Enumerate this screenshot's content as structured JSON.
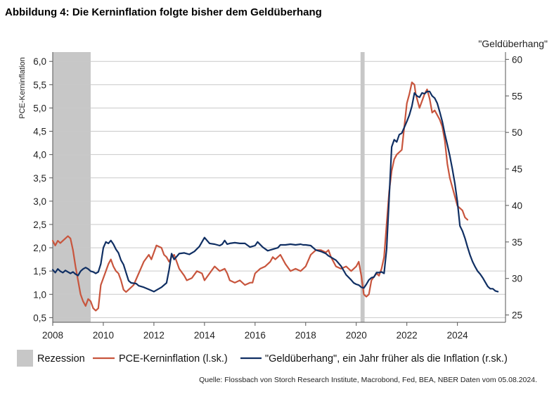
{
  "chart_data": {
    "type": "line",
    "title": "Abbildung 4: Die Kerninflation folgte bisher dem Geldüberhang",
    "ylabel_left": "PCE-Kerninflation",
    "ylabel_right": "\"Geldüberhang\"",
    "xlim": [
      2008,
      2025.9
    ],
    "ylim_left": [
      0.4,
      6.2
    ],
    "ylim_right": [
      24.0,
      61.0
    ],
    "x_ticks": [
      "2008",
      "2010",
      "2012",
      "2014",
      "2016",
      "2018",
      "2020",
      "2022",
      "2024"
    ],
    "y_left_ticks": [
      "0,5",
      "1,0",
      "1,5",
      "2,0",
      "2,5",
      "3,0",
      "3,5",
      "4,0",
      "4,5",
      "5,0",
      "5,5",
      "6,0"
    ],
    "y_right_ticks": [
      "25",
      "30",
      "35",
      "40",
      "45",
      "50",
      "55",
      "60"
    ],
    "grid": true,
    "legend_position": "bottom",
    "recessions": [
      {
        "start": 2008.0,
        "end": 2009.5
      },
      {
        "start": 2020.17,
        "end": 2020.33
      }
    ],
    "series": [
      {
        "name": "PCE-Kerninflation (l.sk.)",
        "axis": "left",
        "color": "#c8553d",
        "points": [
          [
            2008.0,
            2.15
          ],
          [
            2008.1,
            2.05
          ],
          [
            2008.2,
            2.15
          ],
          [
            2008.3,
            2.1
          ],
          [
            2008.4,
            2.15
          ],
          [
            2008.5,
            2.2
          ],
          [
            2008.6,
            2.25
          ],
          [
            2008.7,
            2.2
          ],
          [
            2008.8,
            1.95
          ],
          [
            2008.9,
            1.6
          ],
          [
            2009.0,
            1.3
          ],
          [
            2009.1,
            1.0
          ],
          [
            2009.2,
            0.85
          ],
          [
            2009.3,
            0.75
          ],
          [
            2009.4,
            0.9
          ],
          [
            2009.5,
            0.85
          ],
          [
            2009.6,
            0.7
          ],
          [
            2009.7,
            0.65
          ],
          [
            2009.8,
            0.7
          ],
          [
            2009.9,
            1.2
          ],
          [
            2010.0,
            1.35
          ],
          [
            2010.1,
            1.5
          ],
          [
            2010.2,
            1.65
          ],
          [
            2010.3,
            1.75
          ],
          [
            2010.4,
            1.6
          ],
          [
            2010.5,
            1.5
          ],
          [
            2010.6,
            1.45
          ],
          [
            2010.7,
            1.3
          ],
          [
            2010.8,
            1.1
          ],
          [
            2010.9,
            1.05
          ],
          [
            2011.0,
            1.1
          ],
          [
            2011.2,
            1.2
          ],
          [
            2011.4,
            1.45
          ],
          [
            2011.6,
            1.7
          ],
          [
            2011.8,
            1.85
          ],
          [
            2011.9,
            1.75
          ],
          [
            2012.0,
            1.9
          ],
          [
            2012.1,
            2.05
          ],
          [
            2012.3,
            2.0
          ],
          [
            2012.4,
            1.85
          ],
          [
            2012.5,
            1.8
          ],
          [
            2012.6,
            1.7
          ],
          [
            2012.7,
            1.8
          ],
          [
            2012.8,
            1.85
          ],
          [
            2012.9,
            1.7
          ],
          [
            2013.0,
            1.55
          ],
          [
            2013.2,
            1.4
          ],
          [
            2013.3,
            1.3
          ],
          [
            2013.5,
            1.35
          ],
          [
            2013.7,
            1.5
          ],
          [
            2013.9,
            1.45
          ],
          [
            2014.0,
            1.3
          ],
          [
            2014.2,
            1.45
          ],
          [
            2014.4,
            1.6
          ],
          [
            2014.6,
            1.5
          ],
          [
            2014.8,
            1.55
          ],
          [
            2014.9,
            1.45
          ],
          [
            2015.0,
            1.3
          ],
          [
            2015.2,
            1.25
          ],
          [
            2015.4,
            1.3
          ],
          [
            2015.6,
            1.2
          ],
          [
            2015.8,
            1.25
          ],
          [
            2015.9,
            1.25
          ],
          [
            2016.0,
            1.45
          ],
          [
            2016.2,
            1.55
          ],
          [
            2016.4,
            1.6
          ],
          [
            2016.6,
            1.7
          ],
          [
            2016.7,
            1.8
          ],
          [
            2016.8,
            1.75
          ],
          [
            2017.0,
            1.85
          ],
          [
            2017.2,
            1.65
          ],
          [
            2017.4,
            1.5
          ],
          [
            2017.6,
            1.55
          ],
          [
            2017.8,
            1.5
          ],
          [
            2017.9,
            1.55
          ],
          [
            2018.0,
            1.6
          ],
          [
            2018.2,
            1.85
          ],
          [
            2018.4,
            1.95
          ],
          [
            2018.6,
            1.95
          ],
          [
            2018.8,
            1.9
          ],
          [
            2018.9,
            1.95
          ],
          [
            2019.0,
            1.8
          ],
          [
            2019.2,
            1.6
          ],
          [
            2019.4,
            1.55
          ],
          [
            2019.6,
            1.6
          ],
          [
            2019.8,
            1.5
          ],
          [
            2019.9,
            1.55
          ],
          [
            2020.0,
            1.6
          ],
          [
            2020.1,
            1.7
          ],
          [
            2020.2,
            1.4
          ],
          [
            2020.3,
            1.0
          ],
          [
            2020.4,
            0.95
          ],
          [
            2020.5,
            1.0
          ],
          [
            2020.6,
            1.3
          ],
          [
            2020.8,
            1.45
          ],
          [
            2020.9,
            1.4
          ],
          [
            2021.0,
            1.55
          ],
          [
            2021.1,
            1.8
          ],
          [
            2021.2,
            2.5
          ],
          [
            2021.3,
            3.2
          ],
          [
            2021.4,
            3.65
          ],
          [
            2021.5,
            3.9
          ],
          [
            2021.6,
            4.0
          ],
          [
            2021.8,
            4.1
          ],
          [
            2021.9,
            4.6
          ],
          [
            2022.0,
            5.1
          ],
          [
            2022.1,
            5.3
          ],
          [
            2022.2,
            5.55
          ],
          [
            2022.3,
            5.5
          ],
          [
            2022.35,
            5.3
          ],
          [
            2022.5,
            5.0
          ],
          [
            2022.6,
            5.15
          ],
          [
            2022.7,
            5.3
          ],
          [
            2022.8,
            5.4
          ],
          [
            2022.9,
            5.2
          ],
          [
            2023.0,
            4.9
          ],
          [
            2023.1,
            4.95
          ],
          [
            2023.2,
            4.85
          ],
          [
            2023.3,
            4.75
          ],
          [
            2023.4,
            4.6
          ],
          [
            2023.5,
            4.3
          ],
          [
            2023.6,
            3.8
          ],
          [
            2023.7,
            3.5
          ],
          [
            2023.8,
            3.3
          ],
          [
            2023.9,
            3.1
          ],
          [
            2024.0,
            2.9
          ],
          [
            2024.1,
            2.85
          ],
          [
            2024.2,
            2.8
          ],
          [
            2024.3,
            2.65
          ],
          [
            2024.4,
            2.6
          ]
        ]
      },
      {
        "name": "\"Geldüberhang\", ein Jahr früher als die Inflation (r.sk.)",
        "axis": "right",
        "color": "#102f63",
        "points": [
          [
            2008.0,
            31.2
          ],
          [
            2008.1,
            30.8
          ],
          [
            2008.2,
            31.3
          ],
          [
            2008.3,
            31.0
          ],
          [
            2008.4,
            30.8
          ],
          [
            2008.5,
            31.1
          ],
          [
            2008.6,
            30.9
          ],
          [
            2008.7,
            30.7
          ],
          [
            2008.8,
            30.9
          ],
          [
            2008.9,
            30.6
          ],
          [
            2009.0,
            30.4
          ],
          [
            2009.1,
            31.0
          ],
          [
            2009.2,
            31.3
          ],
          [
            2009.3,
            31.5
          ],
          [
            2009.4,
            31.3
          ],
          [
            2009.5,
            31.0
          ],
          [
            2009.6,
            30.9
          ],
          [
            2009.7,
            30.7
          ],
          [
            2009.8,
            30.9
          ],
          [
            2009.9,
            32.0
          ],
          [
            2010.0,
            34.2
          ],
          [
            2010.1,
            35.0
          ],
          [
            2010.2,
            34.8
          ],
          [
            2010.3,
            35.2
          ],
          [
            2010.4,
            34.7
          ],
          [
            2010.5,
            34.0
          ],
          [
            2010.6,
            33.5
          ],
          [
            2010.7,
            32.5
          ],
          [
            2010.8,
            31.9
          ],
          [
            2010.9,
            30.8
          ],
          [
            2011.0,
            29.7
          ],
          [
            2011.1,
            29.4
          ],
          [
            2011.3,
            29.3
          ],
          [
            2011.4,
            29.0
          ],
          [
            2011.6,
            28.8
          ],
          [
            2011.8,
            28.5
          ],
          [
            2012.0,
            28.2
          ],
          [
            2012.1,
            28.4
          ],
          [
            2012.3,
            28.8
          ],
          [
            2012.5,
            29.4
          ],
          [
            2012.6,
            31.2
          ],
          [
            2012.7,
            33.4
          ],
          [
            2012.8,
            32.6
          ],
          [
            2012.9,
            33.0
          ],
          [
            2013.0,
            33.4
          ],
          [
            2013.2,
            33.5
          ],
          [
            2013.4,
            33.3
          ],
          [
            2013.6,
            33.7
          ],
          [
            2013.8,
            34.4
          ],
          [
            2013.9,
            35.0
          ],
          [
            2014.0,
            35.6
          ],
          [
            2014.1,
            35.2
          ],
          [
            2014.2,
            34.8
          ],
          [
            2014.4,
            34.7
          ],
          [
            2014.6,
            34.5
          ],
          [
            2014.7,
            34.7
          ],
          [
            2014.8,
            35.2
          ],
          [
            2014.9,
            34.7
          ],
          [
            2015.0,
            34.8
          ],
          [
            2015.2,
            34.9
          ],
          [
            2015.4,
            34.8
          ],
          [
            2015.6,
            34.8
          ],
          [
            2015.8,
            34.3
          ],
          [
            2016.0,
            34.5
          ],
          [
            2016.1,
            35.0
          ],
          [
            2016.3,
            34.3
          ],
          [
            2016.5,
            33.8
          ],
          [
            2016.7,
            34.0
          ],
          [
            2016.9,
            34.2
          ],
          [
            2017.0,
            34.6
          ],
          [
            2017.2,
            34.6
          ],
          [
            2017.4,
            34.7
          ],
          [
            2017.6,
            34.6
          ],
          [
            2017.8,
            34.7
          ],
          [
            2017.9,
            34.6
          ],
          [
            2018.0,
            34.6
          ],
          [
            2018.2,
            34.5
          ],
          [
            2018.4,
            33.9
          ],
          [
            2018.6,
            33.7
          ],
          [
            2018.8,
            33.4
          ],
          [
            2018.9,
            33.1
          ],
          [
            2019.0,
            32.9
          ],
          [
            2019.2,
            32.5
          ],
          [
            2019.4,
            31.7
          ],
          [
            2019.6,
            30.5
          ],
          [
            2019.8,
            29.8
          ],
          [
            2019.9,
            29.4
          ],
          [
            2020.0,
            29.2
          ],
          [
            2020.1,
            29.1
          ],
          [
            2020.2,
            28.8
          ],
          [
            2020.3,
            28.7
          ],
          [
            2020.4,
            29.2
          ],
          [
            2020.5,
            29.8
          ],
          [
            2020.6,
            30.1
          ],
          [
            2020.7,
            30.2
          ],
          [
            2020.8,
            30.8
          ],
          [
            2020.9,
            30.8
          ],
          [
            2021.0,
            30.9
          ],
          [
            2021.1,
            30.7
          ],
          [
            2021.2,
            34.0
          ],
          [
            2021.3,
            41.0
          ],
          [
            2021.4,
            48.0
          ],
          [
            2021.5,
            49.0
          ],
          [
            2021.6,
            48.7
          ],
          [
            2021.7,
            49.7
          ],
          [
            2021.8,
            49.9
          ],
          [
            2021.9,
            50.7
          ],
          [
            2022.0,
            51.5
          ],
          [
            2022.1,
            52.4
          ],
          [
            2022.2,
            53.6
          ],
          [
            2022.3,
            55.4
          ],
          [
            2022.4,
            55.0
          ],
          [
            2022.5,
            54.8
          ],
          [
            2022.6,
            55.4
          ],
          [
            2022.7,
            55.3
          ],
          [
            2022.8,
            55.6
          ],
          [
            2022.9,
            55.6
          ],
          [
            2023.0,
            55.0
          ],
          [
            2023.1,
            54.7
          ],
          [
            2023.2,
            54.0
          ],
          [
            2023.3,
            52.8
          ],
          [
            2023.4,
            51.5
          ],
          [
            2023.5,
            49.8
          ],
          [
            2023.6,
            48.3
          ],
          [
            2023.7,
            46.8
          ],
          [
            2023.8,
            45.0
          ],
          [
            2023.9,
            43.0
          ],
          [
            2024.0,
            40.5
          ],
          [
            2024.1,
            37.2
          ],
          [
            2024.2,
            36.5
          ],
          [
            2024.3,
            35.5
          ],
          [
            2024.4,
            34.3
          ],
          [
            2024.5,
            33.2
          ],
          [
            2024.6,
            32.3
          ],
          [
            2024.7,
            31.6
          ],
          [
            2024.8,
            31.0
          ],
          [
            2024.9,
            30.6
          ],
          [
            2025.0,
            30.1
          ],
          [
            2025.1,
            29.5
          ],
          [
            2025.2,
            28.9
          ],
          [
            2025.3,
            28.6
          ],
          [
            2025.4,
            28.6
          ],
          [
            2025.5,
            28.3
          ],
          [
            2025.6,
            28.2
          ]
        ]
      }
    ],
    "legend": {
      "recession_label": "Rezession"
    },
    "source": "Quelle: Flossbach von Storch Research Institute, Macrobond, Fed, BEA, NBER Daten vom 05.08.2024."
  }
}
